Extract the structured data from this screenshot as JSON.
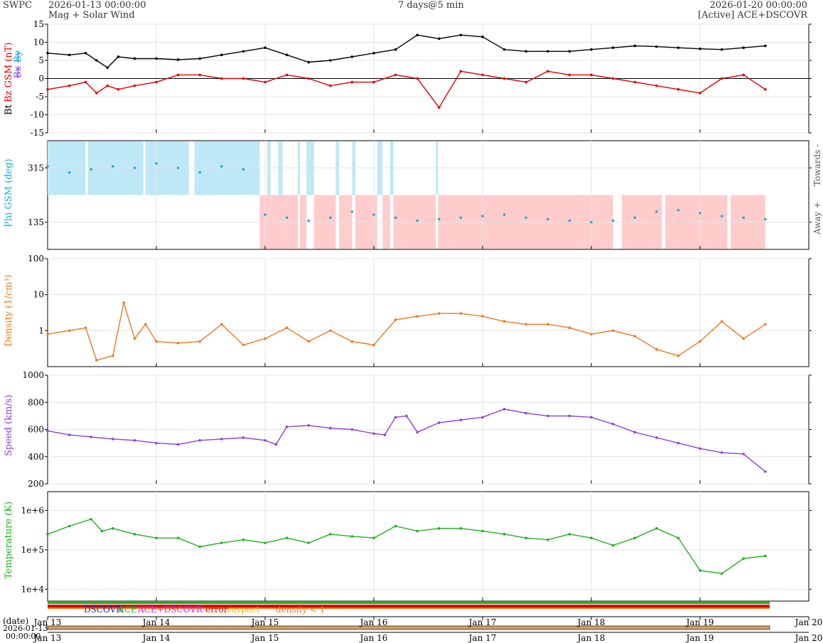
{
  "header": {
    "brand": "SWPC",
    "start": "2026-01-13 00:00:00",
    "subtitle": "Mag + Solar Wind",
    "span": "7 days@5 min",
    "end": "2026-01-20 00:00:00",
    "source": "[Active] ACE+DSCOVR"
  },
  "colors": {
    "bt": "#000000",
    "bz": "#e00000",
    "bx": "#9040e0",
    "by": "#00a0e0",
    "phi": "#1fa8d8",
    "towards_band": "#bfe8f7",
    "away_band": "#ffcccc",
    "density": "#f07820",
    "speed": "#9040d0",
    "temperature": "#20b020",
    "dscovr": "#1030c0",
    "ace": "#20b020",
    "ace_dscovr": "#e020e0",
    "error": "#e00000",
    "suspect": "#f0b000",
    "density_lt_1": "#f07820"
  },
  "legend": {
    "dscovr": "DSCOVR",
    "ace": "ACE",
    "ace_dscovr": "ACE+DSCOVR",
    "error": "error",
    "suspect": "suspect",
    "density_lt_1": "density < 1"
  },
  "date_axis": {
    "label": "(date)",
    "start_date": "2026-01-13",
    "start_time": "00:00:00",
    "days": [
      "Jan 13",
      "Jan 14",
      "Jan 15",
      "Jan 16",
      "Jan 17",
      "Jan 18",
      "Jan 19",
      "Jan 20"
    ]
  },
  "chart_data": [
    {
      "type": "line",
      "ylabel": "Bt",
      "ylabel_bz": "Bz GSM (nT)",
      "ylabel_bx": "Bx",
      "ylabel_by": "By",
      "ylim": [
        -15,
        15
      ],
      "yticks": [
        15,
        10,
        5,
        0,
        -5,
        -10,
        -15
      ],
      "x_unit": "days since 2026-01-13 00:00",
      "series": [
        {
          "name": "Bt",
          "x": [
            0,
            0.2,
            0.35,
            0.45,
            0.55,
            0.65,
            0.8,
            1.0,
            1.2,
            1.4,
            1.6,
            1.8,
            2.0,
            2.2,
            2.4,
            2.6,
            2.8,
            3.0,
            3.2,
            3.4,
            3.6,
            3.8,
            4.0,
            4.2,
            4.4,
            4.6,
            4.8,
            5.0,
            5.2,
            5.4,
            5.6,
            5.8,
            6.0,
            6.2,
            6.4,
            6.6
          ],
          "y": [
            7,
            6.5,
            7,
            5,
            3,
            6,
            5.5,
            5.5,
            5.2,
            5.5,
            6.5,
            7.5,
            8.5,
            6.5,
            4.5,
            5,
            6,
            7,
            8,
            12,
            11,
            12,
            11.5,
            8,
            7.5,
            7.5,
            7.5,
            8,
            8.5,
            9,
            8.8,
            8.5,
            8.2,
            8,
            8.5,
            9
          ]
        },
        {
          "name": "Bz",
          "x": [
            0,
            0.2,
            0.35,
            0.45,
            0.55,
            0.65,
            0.8,
            1.0,
            1.2,
            1.4,
            1.6,
            1.8,
            2.0,
            2.2,
            2.4,
            2.6,
            2.8,
            3.0,
            3.2,
            3.4,
            3.6,
            3.8,
            4.0,
            4.2,
            4.4,
            4.6,
            4.8,
            5.0,
            5.2,
            5.4,
            5.6,
            5.8,
            6.0,
            6.2,
            6.4,
            6.6
          ],
          "y": [
            -3,
            -2,
            -1,
            -4,
            -2,
            -3,
            -2,
            -1,
            1,
            1,
            0,
            0,
            -1,
            1,
            0,
            -2,
            -1,
            -1,
            1,
            0,
            -8,
            2,
            1,
            0,
            -1,
            2,
            1,
            1,
            0,
            -1,
            -2,
            -3,
            -4,
            0,
            1,
            -3
          ]
        }
      ]
    },
    {
      "type": "scatter",
      "ylabel": "Phi GSM (deg)",
      "right_top_label": "Towards -",
      "right_bottom_label": "Away +",
      "ylim": [
        45,
        405
      ],
      "yticks": [
        315,
        135
      ],
      "x_unit": "days since 2026-01-13 00:00",
      "towards_intervals": [
        [
          0,
          0.35
        ],
        [
          0.37,
          0.88
        ],
        [
          0.9,
          1.3
        ],
        [
          1.35,
          1.95
        ],
        [
          2.02,
          2.05
        ],
        [
          2.12,
          2.16
        ],
        [
          2.3,
          2.32
        ],
        [
          2.38,
          2.45
        ],
        [
          2.65,
          2.68
        ],
        [
          2.8,
          2.83
        ],
        [
          3.03,
          3.08
        ],
        [
          3.15,
          3.18
        ],
        [
          3.57,
          3.59
        ]
      ],
      "away_intervals": [
        [
          1.95,
          2.18
        ],
        [
          2.18,
          2.3
        ],
        [
          2.32,
          2.38
        ],
        [
          2.45,
          2.65
        ],
        [
          2.68,
          2.8
        ],
        [
          2.83,
          3.03
        ],
        [
          3.08,
          3.15
        ],
        [
          3.18,
          3.57
        ],
        [
          3.59,
          5.2
        ],
        [
          5.28,
          5.65
        ],
        [
          5.68,
          6.25
        ],
        [
          6.28,
          6.6
        ]
      ],
      "series": [
        {
          "name": "Phi",
          "x": [
            0,
            0.2,
            0.4,
            0.6,
            0.8,
            1.0,
            1.2,
            1.4,
            1.6,
            1.8,
            2.0,
            2.2,
            2.4,
            2.6,
            2.8,
            3.0,
            3.2,
            3.4,
            3.6,
            3.8,
            4.0,
            4.2,
            4.4,
            4.6,
            4.8,
            5.0,
            5.2,
            5.4,
            5.6,
            5.8,
            6.0,
            6.2,
            6.4,
            6.6
          ],
          "y": [
            320,
            300,
            310,
            320,
            315,
            330,
            315,
            300,
            320,
            310,
            160,
            150,
            140,
            150,
            170,
            160,
            150,
            140,
            145,
            150,
            155,
            160,
            150,
            145,
            140,
            135,
            140,
            150,
            170,
            175,
            165,
            155,
            150,
            145
          ]
        }
      ]
    },
    {
      "type": "line",
      "ylabel": "Density (1/cm³)",
      "yscale": "log",
      "ylim": [
        0.1,
        100
      ],
      "yticks": [
        100,
        10,
        1
      ],
      "x_unit": "days since 2026-01-13 00:00",
      "series": [
        {
          "name": "Density",
          "x": [
            0,
            0.2,
            0.35,
            0.45,
            0.6,
            0.7,
            0.8,
            0.9,
            1.0,
            1.2,
            1.4,
            1.6,
            1.8,
            2.0,
            2.2,
            2.4,
            2.6,
            2.8,
            3.0,
            3.2,
            3.4,
            3.6,
            3.8,
            4.0,
            4.2,
            4.4,
            4.6,
            4.8,
            5.0,
            5.2,
            5.4,
            5.6,
            5.8,
            6.0,
            6.2,
            6.4,
            6.6
          ],
          "y": [
            0.8,
            1.0,
            1.2,
            0.15,
            0.2,
            6,
            0.6,
            1.5,
            0.5,
            0.45,
            0.5,
            1.5,
            0.4,
            0.6,
            1.2,
            0.5,
            1.0,
            0.5,
            0.4,
            2.0,
            2.5,
            3.0,
            3.0,
            2.5,
            1.8,
            1.5,
            1.5,
            1.2,
            0.8,
            1.0,
            0.7,
            0.3,
            0.2,
            0.5,
            1.8,
            0.6,
            1.5
          ]
        }
      ]
    },
    {
      "type": "line",
      "ylabel": "Speed (km/s)",
      "ylim": [
        200,
        1000
      ],
      "yticks": [
        1000,
        800,
        600,
        400,
        200
      ],
      "x_unit": "days since 2026-01-13 00:00",
      "series": [
        {
          "name": "Speed",
          "x": [
            0,
            0.2,
            0.4,
            0.6,
            0.8,
            1.0,
            1.2,
            1.4,
            1.6,
            1.8,
            2.0,
            2.1,
            2.2,
            2.4,
            2.6,
            2.8,
            3.0,
            3.1,
            3.2,
            3.3,
            3.4,
            3.6,
            3.8,
            4.0,
            4.2,
            4.4,
            4.6,
            4.8,
            5.0,
            5.2,
            5.4,
            5.6,
            5.8,
            6.0,
            6.2,
            6.4,
            6.6
          ],
          "y": [
            590,
            560,
            545,
            530,
            520,
            500,
            490,
            520,
            530,
            540,
            520,
            490,
            620,
            630,
            610,
            600,
            570,
            560,
            690,
            700,
            580,
            650,
            670,
            690,
            750,
            720,
            700,
            700,
            690,
            640,
            580,
            540,
            500,
            460,
            430,
            420,
            290
          ]
        }
      ]
    },
    {
      "type": "line",
      "ylabel": "Temperature (K)",
      "yscale": "log",
      "ylim": [
        5000,
        3000000
      ],
      "yticks": [
        1000000,
        100000,
        10000
      ],
      "ytick_labels": [
        "1e+6",
        "1e+5",
        "1e+4"
      ],
      "x_unit": "days since 2026-01-13 00:00",
      "series": [
        {
          "name": "Temperature",
          "x": [
            0,
            0.2,
            0.4,
            0.5,
            0.6,
            0.8,
            1.0,
            1.2,
            1.4,
            1.6,
            1.8,
            2.0,
            2.2,
            2.4,
            2.6,
            2.8,
            3.0,
            3.2,
            3.4,
            3.6,
            3.8,
            4.0,
            4.2,
            4.4,
            4.6,
            4.8,
            5.0,
            5.2,
            5.4,
            5.6,
            5.8,
            6.0,
            6.2,
            6.4,
            6.6
          ],
          "y": [
            250000,
            400000,
            600000,
            300000,
            350000,
            250000,
            200000,
            200000,
            120000,
            150000,
            180000,
            150000,
            200000,
            150000,
            250000,
            220000,
            200000,
            400000,
            300000,
            350000,
            350000,
            300000,
            250000,
            200000,
            180000,
            250000,
            200000,
            130000,
            200000,
            350000,
            200000,
            30000,
            25000,
            60000,
            70000
          ]
        }
      ]
    }
  ]
}
